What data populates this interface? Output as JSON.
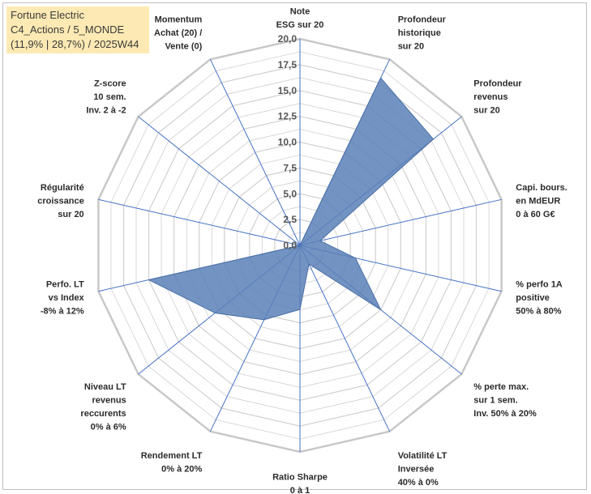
{
  "title": {
    "line1": "Fortune Electric",
    "line2": "C4_Actions / 5_MONDE",
    "line3": "(11,9% | 28,7%) / 2025W44"
  },
  "chart_data": {
    "type": "radar",
    "rmin": 0,
    "rmax": 20,
    "ticks": [
      "0,0",
      "2,5",
      "5,0",
      "7,5",
      "10,0",
      "12,5",
      "15,0",
      "17,5",
      "20,0"
    ],
    "axes": [
      {
        "lines": [
          "Note",
          "ESG sur 20"
        ],
        "value": 0
      },
      {
        "lines": [
          "Profondeur",
          "historique",
          "sur 20"
        ],
        "value": 18
      },
      {
        "lines": [
          "Profondeur",
          "revenus",
          "sur 20"
        ],
        "value": 16.5
      },
      {
        "lines": [
          "Capi. bours.",
          "en MdEUR",
          "0 à 60 G€"
        ],
        "value": 2
      },
      {
        "lines": [
          "% perfo 1A",
          "positive",
          "50% à 80%"
        ],
        "value": 5.5
      },
      {
        "lines": [
          "% perte max.",
          "sur 1 sem.",
          "Inv. 50% à 20%"
        ],
        "value": 10
      },
      {
        "lines": [
          "Volatilité LT",
          "Inversée",
          "40% à 0%"
        ],
        "value": 2
      },
      {
        "lines": [
          "Ratio Sharpe",
          "0 à 1"
        ],
        "value": 6.2
      },
      {
        "lines": [
          "Rendement LT",
          "0% à 20%"
        ],
        "value": 8
      },
      {
        "lines": [
          "Niveau LT",
          "revenus",
          "reccurents",
          "0% à 6%"
        ],
        "value": 10.5
      },
      {
        "lines": [
          "Perfo. LT",
          "vs Index",
          "-8% à 12%"
        ],
        "value": 15
      },
      {
        "lines": [
          "Régularité",
          "croissance",
          "sur 20"
        ],
        "value": 0
      },
      {
        "lines": [
          "Z-score",
          "10 sem.",
          "Inv. 2 à -2"
        ],
        "value": 0
      },
      {
        "lines": [
          "Momentum",
          "Achat (20) /",
          "Vente (0)"
        ],
        "value": 0
      }
    ],
    "colors": {
      "fill": "#5b80b8",
      "fillOpacity": "0.85",
      "stroke": "#4a6fa5",
      "grid": "#d0d0d0",
      "spokes": "#4472c4",
      "outer": "#c8c8c8"
    }
  }
}
